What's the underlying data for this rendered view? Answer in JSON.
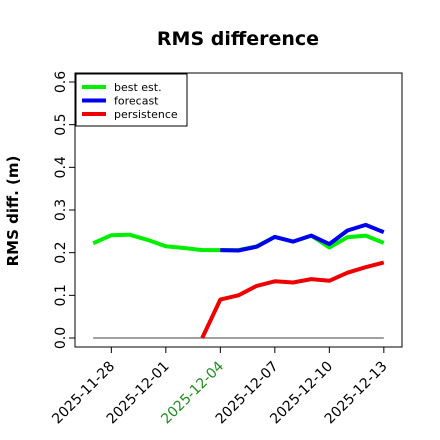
{
  "chart_data": {
    "type": "line",
    "title": "RMS difference",
    "xlabel": "",
    "ylabel": "RMS diff. (m)",
    "ylim": [
      0.0,
      0.6
    ],
    "yticks": [
      "0.0",
      "0.1",
      "0.2",
      "0.3",
      "0.4",
      "0.5",
      "0.6"
    ],
    "xlim": [
      "2025-11-26",
      "2025-12-14"
    ],
    "xticks": [
      {
        "date": "2025-11-28",
        "label": "2025-11-28",
        "color": "#000000"
      },
      {
        "date": "2025-12-01",
        "label": "2025-12-01",
        "color": "#000000"
      },
      {
        "date": "2025-12-04",
        "label": "2025-12-04",
        "color": "#228b22"
      },
      {
        "date": "2025-12-07",
        "label": "2025-12-07",
        "color": "#000000"
      },
      {
        "date": "2025-12-10",
        "label": "2025-12-10",
        "color": "#000000"
      },
      {
        "date": "2025-12-13",
        "label": "2025-12-13",
        "color": "#000000"
      }
    ],
    "legend_position": "top-left",
    "zero_line": {
      "x": [
        "2025-11-27",
        "2025-12-13"
      ],
      "y": 0.0,
      "color": "#808080"
    },
    "series": [
      {
        "name": "best est.",
        "color": "#00ee00",
        "x": [
          "2025-11-27",
          "2025-11-28",
          "2025-11-29",
          "2025-11-30",
          "2025-12-01",
          "2025-12-02",
          "2025-12-03",
          "2025-12-04",
          "2025-12-05",
          "2025-12-06",
          "2025-12-07",
          "2025-12-08",
          "2025-12-09",
          "2025-12-10",
          "2025-12-11",
          "2025-12-12",
          "2025-12-13"
        ],
        "y": [
          0.222,
          0.241,
          0.242,
          0.23,
          0.215,
          0.211,
          0.206,
          0.206,
          0.206,
          0.215,
          0.237,
          0.226,
          0.24,
          0.212,
          0.236,
          0.24,
          0.223
        ]
      },
      {
        "name": "forecast",
        "color": "#0000ee",
        "x": [
          "2025-12-04",
          "2025-12-05",
          "2025-12-06",
          "2025-12-07",
          "2025-12-08",
          "2025-12-09",
          "2025-12-10",
          "2025-12-11",
          "2025-12-12",
          "2025-12-13"
        ],
        "y": [
          0.206,
          0.205,
          0.214,
          0.237,
          0.226,
          0.24,
          0.22,
          0.252,
          0.265,
          0.248
        ]
      },
      {
        "name": "persistence",
        "color": "#ee0000",
        "x": [
          "2025-12-03",
          "2025-12-04",
          "2025-12-05",
          "2025-12-06",
          "2025-12-07",
          "2025-12-08",
          "2025-12-09",
          "2025-12-10",
          "2025-12-11",
          "2025-12-12",
          "2025-12-13"
        ],
        "y": [
          0.0,
          0.09,
          0.1,
          0.122,
          0.133,
          0.13,
          0.138,
          0.134,
          0.153,
          0.166,
          0.177
        ]
      }
    ]
  }
}
